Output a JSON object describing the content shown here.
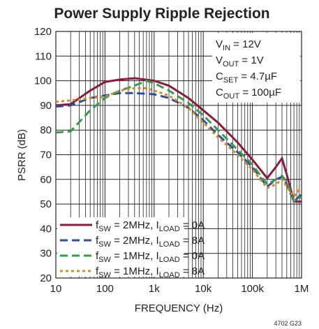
{
  "chart_data": {
    "type": "line",
    "title": "Power Supply Ripple Rejection",
    "x_label": "FREQUENCY (Hz)",
    "y_label": "PSRR (dB)",
    "figure_id": "4702 G23",
    "log_x": true,
    "grid": true,
    "xlim": [
      10,
      1000000
    ],
    "ylim": [
      20,
      120
    ],
    "xticks": [
      10,
      100,
      {
        "value": 1000,
        "label": "1k"
      },
      {
        "value": 10000,
        "label": "10k"
      },
      {
        "value": 100000,
        "label": "100k"
      },
      {
        "value": 1000000,
        "label": "1M"
      }
    ],
    "minor_xticks": [
      20,
      30,
      40,
      50,
      60,
      70,
      80,
      90,
      200,
      300,
      400,
      500,
      600,
      700,
      800,
      900,
      2000,
      3000,
      4000,
      5000,
      6000,
      7000,
      8000,
      9000,
      20000,
      30000,
      40000,
      50000,
      60000,
      70000,
      80000,
      90000,
      200000,
      300000,
      400000,
      500000,
      600000,
      700000,
      800000,
      900000
    ],
    "yticks": [
      20,
      30,
      40,
      50,
      60,
      70,
      80,
      90,
      100,
      110,
      120
    ],
    "annotations": [
      [
        "V",
        "IN",
        " = 12V"
      ],
      [
        "V",
        "OUT",
        " = 1V"
      ],
      [
        "C",
        "SET",
        " = 4.7µF"
      ],
      [
        "C",
        "OUT",
        " = 100µF"
      ]
    ],
    "legend": "lower left",
    "series": [
      {
        "name": [
          "f",
          "SW",
          " = 2MHz, I",
          "LOAD",
          " = 0A"
        ],
        "color": "#8b1a3c",
        "style": "solid",
        "x": [
          10,
          20,
          50,
          100,
          200,
          400,
          1000,
          2000,
          5000,
          10000,
          20000,
          50000,
          100000,
          200000,
          300000,
          400000,
          500000,
          700000,
          1000000
        ],
        "values": [
          90,
          90.5,
          96,
          99.5,
          100.5,
          101,
          100,
          98,
          93,
          88,
          83,
          75,
          68,
          60.5,
          65,
          68.5,
          62,
          51,
          51
        ]
      },
      {
        "name": [
          "f",
          "SW",
          " = 2MHz, I",
          "LOAD",
          " = 8A"
        ],
        "color": "#2e4fa0",
        "style": "dashed",
        "x": [
          10,
          20,
          50,
          100,
          200,
          400,
          1000,
          2000,
          5000,
          10000,
          20000,
          50000,
          100000,
          200000,
          300000,
          400000,
          500000,
          700000,
          1000000
        ],
        "values": [
          89.5,
          90,
          93,
          94,
          95,
          95,
          94.5,
          93,
          89,
          84,
          78,
          71,
          65,
          57,
          60,
          61,
          58,
          51,
          54
        ]
      },
      {
        "name": [
          "f",
          "SW",
          " = 1MHz, I",
          "LOAD",
          " = 0A"
        ],
        "color": "#3a9a4a",
        "style": "dashed",
        "x": [
          10,
          20,
          50,
          100,
          200,
          400,
          700,
          1000,
          2000,
          5000,
          10000,
          20000,
          50000,
          100000,
          200000,
          300000,
          400000,
          500000,
          700000,
          1000000
        ],
        "values": [
          79,
          79.5,
          88,
          93,
          96,
          98,
          100,
          99,
          96,
          91,
          86,
          80,
          72,
          66,
          58,
          60,
          61.5,
          59,
          51,
          53
        ]
      },
      {
        "name": [
          "f",
          "SW",
          " = 1MHz, I",
          "LOAD",
          " = 8A"
        ],
        "color": "#d4892a",
        "style": "dotted",
        "x": [
          10,
          20,
          50,
          100,
          200,
          400,
          700,
          1000,
          2000,
          5000,
          10000,
          20000,
          50000,
          100000,
          200000,
          300000,
          400000,
          500000,
          700000,
          1000000
        ],
        "values": [
          91.5,
          92,
          93,
          93.5,
          96,
          97,
          97,
          96,
          94,
          89,
          83,
          77,
          70,
          64,
          56.5,
          58,
          60,
          57,
          53,
          57
        ]
      }
    ]
  }
}
